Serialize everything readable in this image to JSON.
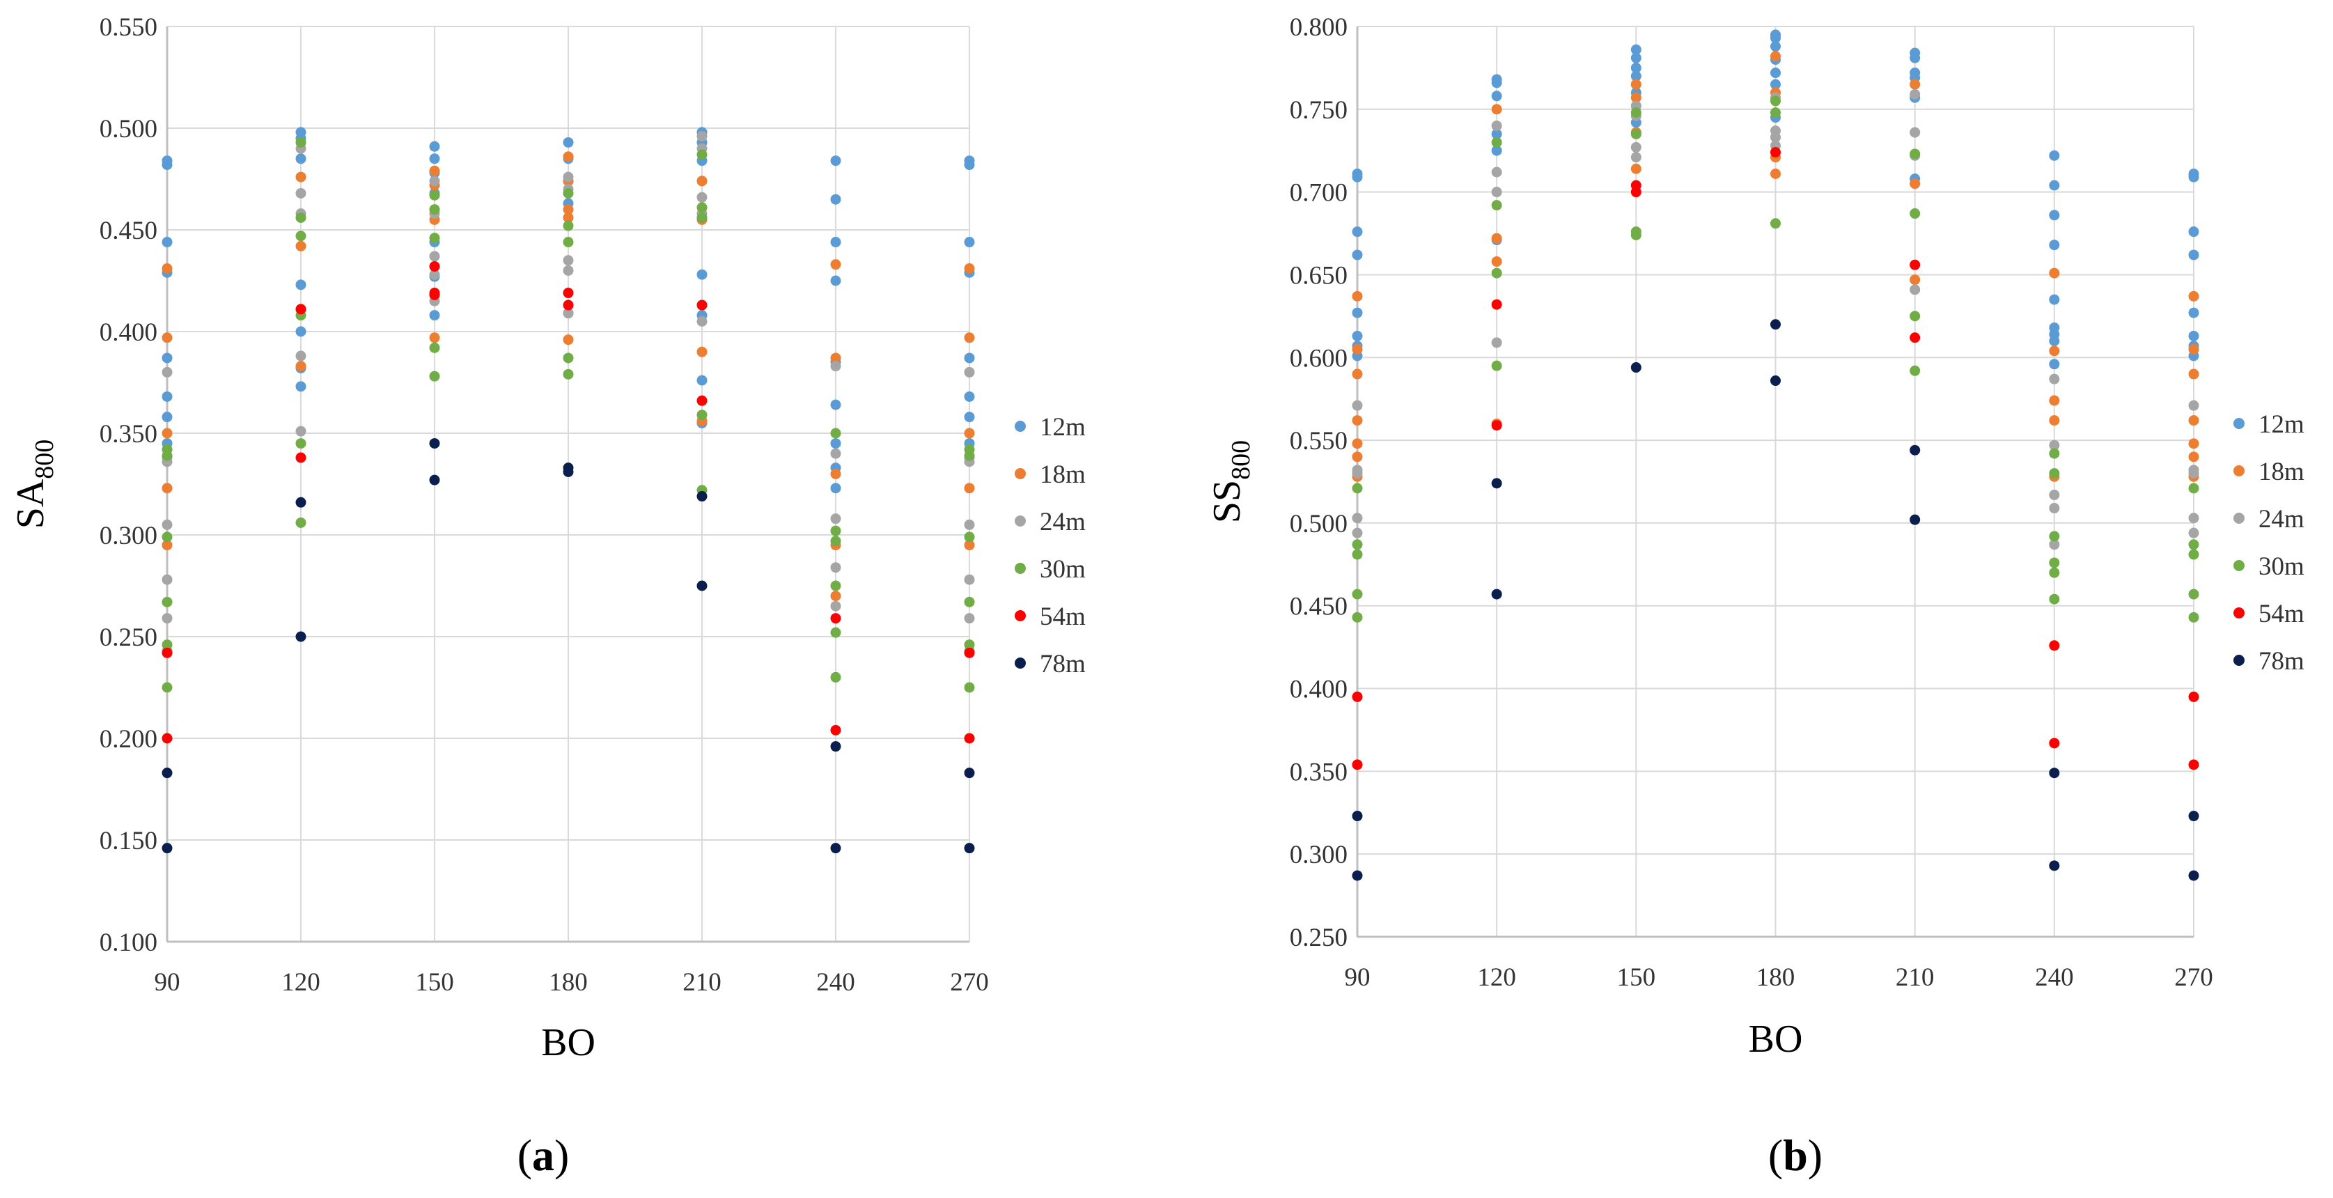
{
  "colors": {
    "12m": "#5b9bd5",
    "18m": "#ed7d31",
    "24m": "#a5a5a5",
    "30m": "#70ad47",
    "54m": "#ff0000",
    "78m": "#0b1f4f",
    "grid": "#d9d9d9",
    "axis": "#bfbfbf"
  },
  "chart_data": [
    {
      "panel": "a",
      "caption_open": "(",
      "caption_letter": "a",
      "caption_close": ")",
      "type": "scatter",
      "xlabel": "BO",
      "ylabel_base": "SA",
      "ylabel_sub": "800",
      "xlim": [
        90,
        270
      ],
      "ylim": [
        0.1,
        0.55
      ],
      "x_ticks": [
        90,
        120,
        150,
        180,
        210,
        240,
        270
      ],
      "x_tick_labels": [
        "90",
        "120",
        "150",
        "180",
        "210",
        "240",
        "270"
      ],
      "y_ticks": [
        0.1,
        0.15,
        0.2,
        0.25,
        0.3,
        0.35,
        0.4,
        0.45,
        0.5,
        0.55
      ],
      "y_tick_labels": [
        "0.100",
        "0.150",
        "0.200",
        "0.250",
        "0.300",
        "0.350",
        "0.400",
        "0.450",
        "0.500",
        "0.550"
      ],
      "grid": true,
      "legend": "right",
      "series": [
        {
          "name": "12m",
          "x": [
            90,
            90,
            90,
            90,
            90,
            90,
            90,
            90,
            120,
            120,
            120,
            120,
            120,
            120,
            120,
            150,
            150,
            150,
            150,
            150,
            150,
            150,
            150,
            180,
            180,
            180,
            180,
            180,
            210,
            210,
            210,
            210,
            210,
            210,
            210,
            240,
            240,
            240,
            240,
            240,
            240,
            240,
            240,
            240,
            270,
            270,
            270,
            270,
            270,
            270,
            270,
            270
          ],
          "y": [
            0.484,
            0.482,
            0.444,
            0.429,
            0.387,
            0.368,
            0.358,
            0.345,
            0.498,
            0.495,
            0.485,
            0.423,
            0.4,
            0.373,
            0.382,
            0.491,
            0.485,
            0.478,
            0.468,
            0.444,
            0.427,
            0.408,
            0.432,
            0.493,
            0.485,
            0.474,
            0.463,
            0.409,
            0.498,
            0.493,
            0.484,
            0.428,
            0.408,
            0.376,
            0.355,
            0.484,
            0.465,
            0.444,
            0.425,
            0.385,
            0.364,
            0.345,
            0.333,
            0.323,
            0.484,
            0.482,
            0.444,
            0.429,
            0.387,
            0.368,
            0.358,
            0.345
          ]
        },
        {
          "name": "18m",
          "x": [
            90,
            90,
            90,
            90,
            90,
            120,
            120,
            120,
            120,
            150,
            150,
            150,
            150,
            150,
            150,
            180,
            180,
            180,
            180,
            180,
            210,
            210,
            210,
            210,
            240,
            240,
            240,
            240,
            240,
            270,
            270,
            270,
            270,
            270
          ],
          "y": [
            0.431,
            0.397,
            0.35,
            0.323,
            0.295,
            0.476,
            0.442,
            0.411,
            0.383,
            0.479,
            0.472,
            0.46,
            0.455,
            0.418,
            0.397,
            0.486,
            0.474,
            0.46,
            0.456,
            0.396,
            0.474,
            0.455,
            0.39,
            0.356,
            0.433,
            0.387,
            0.33,
            0.295,
            0.27,
            0.431,
            0.397,
            0.35,
            0.323,
            0.295
          ]
        },
        {
          "name": "24m",
          "x": [
            90,
            90,
            90,
            90,
            90,
            90,
            90,
            120,
            120,
            120,
            120,
            120,
            150,
            150,
            150,
            150,
            150,
            180,
            180,
            180,
            180,
            180,
            210,
            210,
            210,
            210,
            210,
            240,
            240,
            240,
            240,
            240,
            270,
            270,
            270,
            270,
            270,
            270,
            270
          ],
          "y": [
            0.38,
            0.338,
            0.336,
            0.305,
            0.278,
            0.259,
            0.243,
            0.49,
            0.468,
            0.458,
            0.388,
            0.351,
            0.474,
            0.458,
            0.437,
            0.428,
            0.415,
            0.476,
            0.47,
            0.435,
            0.43,
            0.409,
            0.496,
            0.49,
            0.466,
            0.458,
            0.405,
            0.383,
            0.34,
            0.308,
            0.284,
            0.265,
            0.38,
            0.338,
            0.336,
            0.305,
            0.278,
            0.259,
            0.243
          ]
        },
        {
          "name": "30m",
          "x": [
            90,
            90,
            90,
            90,
            90,
            90,
            120,
            120,
            120,
            120,
            120,
            120,
            150,
            150,
            150,
            150,
            150,
            180,
            180,
            180,
            180,
            180,
            210,
            210,
            210,
            210,
            210,
            240,
            240,
            240,
            240,
            240,
            240,
            270,
            270,
            270,
            270,
            270,
            270
          ],
          "y": [
            0.342,
            0.339,
            0.299,
            0.267,
            0.246,
            0.225,
            0.493,
            0.456,
            0.447,
            0.408,
            0.345,
            0.306,
            0.467,
            0.46,
            0.446,
            0.392,
            0.378,
            0.468,
            0.452,
            0.444,
            0.387,
            0.379,
            0.487,
            0.461,
            0.456,
            0.359,
            0.322,
            0.35,
            0.302,
            0.297,
            0.275,
            0.252,
            0.23,
            0.342,
            0.339,
            0.299,
            0.267,
            0.246,
            0.225
          ]
        },
        {
          "name": "54m",
          "x": [
            90,
            90,
            120,
            120,
            150,
            150,
            150,
            180,
            180,
            210,
            210,
            240,
            240,
            270,
            270
          ],
          "y": [
            0.242,
            0.2,
            0.411,
            0.338,
            0.432,
            0.419,
            0.418,
            0.419,
            0.413,
            0.413,
            0.366,
            0.259,
            0.204,
            0.242,
            0.2
          ]
        },
        {
          "name": "78m",
          "x": [
            90,
            90,
            120,
            120,
            150,
            150,
            180,
            180,
            210,
            210,
            240,
            240,
            270,
            270
          ],
          "y": [
            0.183,
            0.146,
            0.316,
            0.25,
            0.345,
            0.327,
            0.333,
            0.331,
            0.319,
            0.275,
            0.196,
            0.146,
            0.183,
            0.146
          ]
        }
      ]
    },
    {
      "panel": "b",
      "caption_open": "(",
      "caption_letter": "b",
      "caption_close": ")",
      "type": "scatter",
      "xlabel": "BO",
      "ylabel_base": "SS",
      "ylabel_sub": "800",
      "xlim": [
        90,
        270
      ],
      "ylim": [
        0.25,
        0.8
      ],
      "x_ticks": [
        90,
        120,
        150,
        180,
        210,
        240,
        270
      ],
      "x_tick_labels": [
        "90",
        "120",
        "150",
        "180",
        "210",
        "240",
        "270"
      ],
      "y_ticks": [
        0.25,
        0.3,
        0.35,
        0.4,
        0.45,
        0.5,
        0.55,
        0.6,
        0.65,
        0.7,
        0.75,
        0.8
      ],
      "y_tick_labels": [
        "0.250",
        "0.300",
        "0.350",
        "0.400",
        "0.450",
        "0.500",
        "0.550",
        "0.600",
        "0.650",
        "0.700",
        "0.750",
        "0.800"
      ],
      "grid": true,
      "legend": "right",
      "series": [
        {
          "name": "12m",
          "x": [
            90,
            90,
            90,
            90,
            90,
            90,
            90,
            90,
            120,
            120,
            120,
            120,
            120,
            120,
            150,
            150,
            150,
            150,
            150,
            150,
            150,
            150,
            180,
            180,
            180,
            180,
            180,
            180,
            180,
            210,
            210,
            210,
            210,
            210,
            210,
            240,
            240,
            240,
            240,
            240,
            240,
            240,
            240,
            240,
            270,
            270,
            270,
            270,
            270,
            270,
            270,
            270
          ],
          "y": [
            0.711,
            0.709,
            0.676,
            0.662,
            0.627,
            0.613,
            0.607,
            0.601,
            0.768,
            0.766,
            0.758,
            0.735,
            0.725,
            0.671,
            0.786,
            0.781,
            0.775,
            0.77,
            0.765,
            0.76,
            0.752,
            0.742,
            0.795,
            0.793,
            0.788,
            0.78,
            0.772,
            0.765,
            0.745,
            0.784,
            0.781,
            0.772,
            0.769,
            0.757,
            0.708,
            0.722,
            0.704,
            0.686,
            0.668,
            0.635,
            0.618,
            0.614,
            0.61,
            0.596,
            0.711,
            0.709,
            0.676,
            0.662,
            0.627,
            0.613,
            0.607,
            0.601
          ]
        },
        {
          "name": "18m",
          "x": [
            90,
            90,
            90,
            90,
            90,
            90,
            90,
            120,
            120,
            120,
            120,
            150,
            150,
            150,
            150,
            180,
            180,
            180,
            180,
            210,
            210,
            210,
            240,
            240,
            240,
            240,
            240,
            270,
            270,
            270,
            270,
            270,
            270,
            270
          ],
          "y": [
            0.637,
            0.605,
            0.59,
            0.562,
            0.548,
            0.54,
            0.528,
            0.75,
            0.672,
            0.658,
            0.56,
            0.765,
            0.757,
            0.736,
            0.714,
            0.782,
            0.76,
            0.721,
            0.711,
            0.765,
            0.705,
            0.647,
            0.651,
            0.604,
            0.574,
            0.562,
            0.528,
            0.637,
            0.605,
            0.59,
            0.562,
            0.548,
            0.54,
            0.528
          ]
        },
        {
          "name": "24m",
          "x": [
            90,
            90,
            90,
            90,
            90,
            120,
            120,
            120,
            120,
            150,
            150,
            150,
            150,
            180,
            180,
            180,
            180,
            210,
            210,
            210,
            210,
            240,
            240,
            240,
            240,
            240,
            270,
            270,
            270,
            270,
            270
          ],
          "y": [
            0.571,
            0.532,
            0.53,
            0.503,
            0.494,
            0.74,
            0.712,
            0.7,
            0.609,
            0.752,
            0.746,
            0.727,
            0.721,
            0.757,
            0.737,
            0.733,
            0.728,
            0.759,
            0.736,
            0.722,
            0.641,
            0.587,
            0.547,
            0.517,
            0.509,
            0.487,
            0.571,
            0.532,
            0.53,
            0.503,
            0.494
          ]
        },
        {
          "name": "30m",
          "x": [
            90,
            90,
            90,
            90,
            90,
            120,
            120,
            120,
            120,
            150,
            150,
            150,
            150,
            180,
            180,
            180,
            210,
            210,
            210,
            210,
            240,
            240,
            240,
            240,
            240,
            240,
            270,
            270,
            270,
            270,
            270
          ],
          "y": [
            0.521,
            0.487,
            0.481,
            0.457,
            0.443,
            0.73,
            0.692,
            0.651,
            0.595,
            0.748,
            0.735,
            0.676,
            0.674,
            0.755,
            0.748,
            0.681,
            0.723,
            0.687,
            0.625,
            0.592,
            0.542,
            0.53,
            0.492,
            0.476,
            0.47,
            0.454,
            0.521,
            0.487,
            0.481,
            0.457,
            0.443
          ]
        },
        {
          "name": "54m",
          "x": [
            90,
            90,
            120,
            120,
            150,
            150,
            180,
            210,
            210,
            240,
            240,
            270,
            270
          ],
          "y": [
            0.395,
            0.354,
            0.632,
            0.559,
            0.704,
            0.7,
            0.724,
            0.656,
            0.612,
            0.426,
            0.367,
            0.395,
            0.354
          ]
        },
        {
          "name": "78m",
          "x": [
            90,
            90,
            120,
            120,
            150,
            180,
            180,
            210,
            210,
            240,
            240,
            270,
            270
          ],
          "y": [
            0.323,
            0.287,
            0.524,
            0.457,
            0.594,
            0.62,
            0.586,
            0.544,
            0.502,
            0.349,
            0.293,
            0.323,
            0.287
          ]
        }
      ]
    }
  ]
}
